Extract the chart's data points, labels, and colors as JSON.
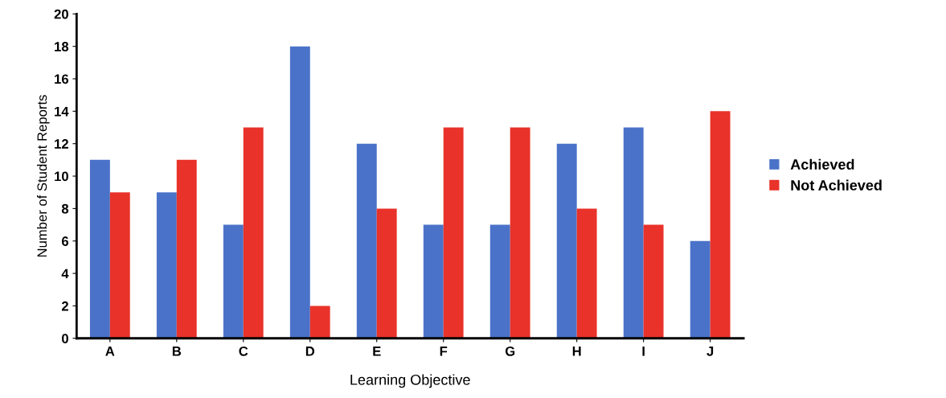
{
  "chart_data": {
    "type": "bar",
    "xlabel": "Learning Objective",
    "ylabel": "Number of Student Reports",
    "categories": [
      "A",
      "B",
      "C",
      "D",
      "E",
      "F",
      "G",
      "H",
      "I",
      "J"
    ],
    "series": [
      {
        "name": "Achieved",
        "color": "#4a72c8",
        "values": [
          11,
          9,
          7,
          18,
          12,
          7,
          7,
          12,
          13,
          6
        ]
      },
      {
        "name": "Not Achieved",
        "color": "#e8322a",
        "values": [
          9,
          11,
          13,
          2,
          8,
          13,
          13,
          8,
          7,
          14
        ]
      }
    ],
    "ylim": [
      0,
      20
    ],
    "yticks": [
      0,
      2,
      4,
      6,
      8,
      10,
      12,
      14,
      16,
      18,
      20
    ],
    "grid": false,
    "legend": "right"
  }
}
